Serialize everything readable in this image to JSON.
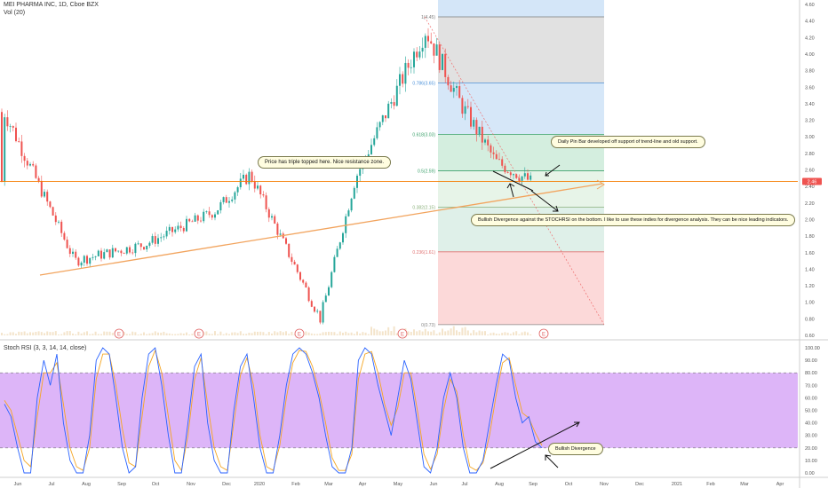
{
  "header": {
    "symbol_line": "MEI PHARMA INC, 1D, Cboe BZX",
    "volume_label": "Vol (20)"
  },
  "stoch_header": "Stoch RSI (3, 3, 14, 14, close)",
  "annotations": {
    "triple_top": "Price has triple topped here.  Nice resistance zone.",
    "pin_bar": "Daily Pin Bar developed off support of trend-line and old support.",
    "bullish_div": "Bullish Divergence against the STOCHRSI on the bottom. I like to use these indies for divergence analysis. They can be nice leading indicators.",
    "bullish_div_short": "Bullish Divergence"
  },
  "earnings_marker": "E",
  "colors": {
    "up_candle": "#26a69a",
    "down_candle": "#ef5350",
    "price_line": "#f57c00",
    "trendline": "#f2a45e",
    "stoch_k": "#2962ff",
    "stoch_d": "#f5a623",
    "stoch_band": "#d29cf5"
  },
  "chart_data": [
    {
      "type": "candlestick",
      "title": "MEI PHARMA INC, 1D, Cboe BZX",
      "y_axis": {
        "ticks": [
          "4.60",
          "4.40",
          "4.20",
          "4.00",
          "3.80",
          "3.60",
          "3.40",
          "3.20",
          "3.00",
          "2.80",
          "2.60",
          "2.40",
          "2.20",
          "2.00",
          "1.80",
          "1.60",
          "1.40",
          "1.20",
          "1.00",
          "0.80",
          "0.60"
        ],
        "ylim": [
          0.6,
          4.6
        ]
      },
      "x_axis": {
        "ticks": [
          "Jun",
          "Jul",
          "Aug",
          "Sep",
          "Oct",
          "Nov",
          "Dec",
          "2020",
          "Feb",
          "Mar",
          "Apr",
          "May",
          "Jun",
          "Jul",
          "Aug",
          "Sep",
          "Oct",
          "Nov",
          "Dec",
          "2021",
          "Feb",
          "Mar",
          "Apr"
        ]
      },
      "last_price": 2.46,
      "last_price_label": "2.46",
      "fibonacci": [
        {
          "label": "1(4.45)",
          "value": 4.45
        },
        {
          "label": "0.786(3.65)",
          "value": 3.65
        },
        {
          "label": "0.618(3.03)",
          "value": 3.03
        },
        {
          "label": "0.5(2.59)",
          "value": 2.59
        },
        {
          "label": "0.382(2.15)",
          "value": 2.15
        },
        {
          "label": "0.236(1.61)",
          "value": 1.61
        },
        {
          "label": "0(0.73)",
          "value": 0.73
        }
      ],
      "key_points": [
        {
          "date": "2019-06",
          "price": 3.3
        },
        {
          "date": "2019-08",
          "price": 1.5
        },
        {
          "date": "2019-10",
          "price": 1.7
        },
        {
          "date": "2019-12",
          "price": 2.1
        },
        {
          "date": "2020-01",
          "price": 2.55
        },
        {
          "date": "2020-03",
          "price": 0.8
        },
        {
          "date": "2020-04",
          "price": 2.5
        },
        {
          "date": "2020-06",
          "price": 4.3
        },
        {
          "date": "2020-07",
          "price": 3.4
        },
        {
          "date": "2020-08",
          "price": 2.7
        },
        {
          "date": "2020-09",
          "price": 2.46
        }
      ]
    },
    {
      "type": "line",
      "title": "Stoch RSI (3, 3, 14, 14, close)",
      "y_axis": {
        "ticks": [
          "100.00",
          "90.00",
          "80.00",
          "70.00",
          "60.00",
          "50.00",
          "40.00",
          "30.00",
          "20.00",
          "10.00",
          "0.00"
        ],
        "ylim": [
          0,
          100
        ]
      },
      "bands": [
        20,
        80
      ],
      "series": [
        {
          "name": "K",
          "values": [
            55,
            45,
            20,
            0,
            0,
            60,
            90,
            70,
            95,
            40,
            10,
            0,
            0,
            30,
            90,
            100,
            95,
            60,
            20,
            0,
            5,
            60,
            95,
            100,
            70,
            30,
            0,
            0,
            40,
            85,
            95,
            40,
            10,
            0,
            0,
            50,
            85,
            95,
            60,
            20,
            0,
            0,
            30,
            70,
            95,
            100,
            95,
            80,
            60,
            30,
            5,
            0,
            0,
            20,
            90,
            100,
            95,
            70,
            50,
            30,
            60,
            90,
            75,
            40,
            5,
            0,
            20,
            60,
            80,
            60,
            20,
            0,
            0,
            10,
            40,
            70,
            95,
            90,
            60,
            40,
            45,
            25,
            20
          ]
        },
        {
          "name": "D",
          "values": [
            58,
            50,
            30,
            10,
            5,
            45,
            80,
            80,
            88,
            55,
            20,
            5,
            2,
            20,
            75,
            95,
            95,
            70,
            35,
            8,
            5,
            45,
            85,
            98,
            80,
            45,
            10,
            2,
            30,
            75,
            92,
            55,
            20,
            5,
            2,
            40,
            78,
            92,
            70,
            30,
            5,
            2,
            22,
            60,
            88,
            98,
            97,
            85,
            65,
            40,
            12,
            2,
            2,
            15,
            75,
            95,
            97,
            80,
            55,
            38,
            52,
            80,
            80,
            50,
            15,
            3,
            15,
            50,
            75,
            65,
            30,
            5,
            2,
            8,
            30,
            62,
            88,
            92,
            70,
            48,
            44,
            32,
            22
          ]
        }
      ]
    }
  ]
}
